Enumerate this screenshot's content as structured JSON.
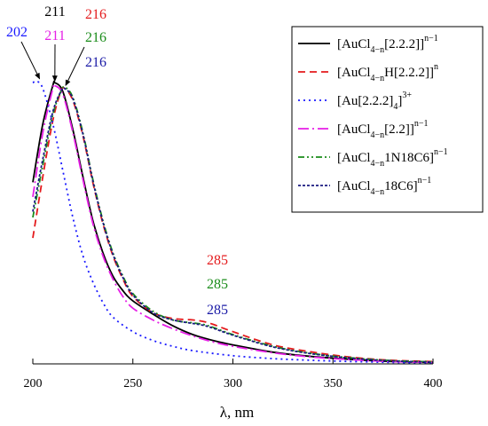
{
  "chart_data": {
    "type": "line",
    "title": "",
    "xlabel": "λ, nm",
    "ylabel": "",
    "xlim": [
      200,
      400
    ],
    "ylim": [
      0,
      1.0
    ],
    "xticks": [
      200,
      250,
      300,
      350,
      400
    ],
    "y_tick_labels": false,
    "grid": false,
    "legend_position": "top-right",
    "legend": [
      {
        "base": "[AuCl",
        "sub": "4−n",
        "after": "[2.2.2]]",
        "sup": "n−1"
      },
      {
        "base": "[AuCl",
        "sub": "4−n",
        "after": "H[2.2.2]]",
        "sup": "n"
      },
      {
        "base": "[Au[2.2.2]",
        "sub": "4",
        "after": "]",
        "sup": "3+"
      },
      {
        "base": "[AuCl",
        "sub": "4−n",
        "after": "[2.2]]",
        "sup": "n−1"
      },
      {
        "base": "[AuCl",
        "sub": "4−n",
        "after": "1N18C6]",
        "sup": "n−1"
      },
      {
        "base": "[AuCl",
        "sub": "4−n",
        "after": "18C6]",
        "sup": "n−1"
      }
    ],
    "series": [
      {
        "color": "#000000",
        "dash": "solid",
        "points": [
          [
            200,
            0.62
          ],
          [
            205,
            0.82
          ],
          [
            210,
            0.95
          ],
          [
            211,
            0.96
          ],
          [
            215,
            0.93
          ],
          [
            220,
            0.8
          ],
          [
            225,
            0.64
          ],
          [
            230,
            0.49
          ],
          [
            235,
            0.38
          ],
          [
            240,
            0.3
          ],
          [
            245,
            0.25
          ],
          [
            250,
            0.215
          ],
          [
            260,
            0.17
          ],
          [
            270,
            0.13
          ],
          [
            280,
            0.1
          ],
          [
            290,
            0.08
          ],
          [
            300,
            0.065
          ],
          [
            320,
            0.04
          ],
          [
            340,
            0.025
          ],
          [
            360,
            0.015
          ],
          [
            380,
            0.008
          ],
          [
            400,
            0.005
          ]
        ]
      },
      {
        "color": "#e41a1c",
        "dash": "8,5",
        "points": [
          [
            200,
            0.43
          ],
          [
            205,
            0.64
          ],
          [
            210,
            0.83
          ],
          [
            214,
            0.93
          ],
          [
            216,
            0.94
          ],
          [
            220,
            0.9
          ],
          [
            225,
            0.78
          ],
          [
            230,
            0.62
          ],
          [
            235,
            0.48
          ],
          [
            240,
            0.37
          ],
          [
            245,
            0.29
          ],
          [
            250,
            0.23
          ],
          [
            260,
            0.175
          ],
          [
            270,
            0.155
          ],
          [
            280,
            0.15
          ],
          [
            285,
            0.145
          ],
          [
            290,
            0.135
          ],
          [
            300,
            0.11
          ],
          [
            320,
            0.065
          ],
          [
            340,
            0.04
          ],
          [
            360,
            0.022
          ],
          [
            380,
            0.012
          ],
          [
            400,
            0.008
          ]
        ]
      },
      {
        "color": "#1a1aff",
        "dash": "2,4",
        "points": [
          [
            200,
            0.96
          ],
          [
            202,
            0.965
          ],
          [
            205,
            0.94
          ],
          [
            210,
            0.82
          ],
          [
            215,
            0.66
          ],
          [
            220,
            0.5
          ],
          [
            225,
            0.37
          ],
          [
            230,
            0.28
          ],
          [
            235,
            0.21
          ],
          [
            240,
            0.16
          ],
          [
            250,
            0.11
          ],
          [
            260,
            0.08
          ],
          [
            270,
            0.06
          ],
          [
            280,
            0.045
          ],
          [
            300,
            0.028
          ],
          [
            320,
            0.018
          ],
          [
            340,
            0.012
          ],
          [
            360,
            0.008
          ],
          [
            380,
            0.005
          ],
          [
            400,
            0.003
          ]
        ]
      },
      {
        "color": "#e61fe6",
        "dash": "12,4,2,4",
        "points": [
          [
            200,
            0.57
          ],
          [
            205,
            0.79
          ],
          [
            210,
            0.94
          ],
          [
            211,
            0.95
          ],
          [
            215,
            0.92
          ],
          [
            220,
            0.79
          ],
          [
            225,
            0.63
          ],
          [
            230,
            0.48
          ],
          [
            235,
            0.37
          ],
          [
            240,
            0.29
          ],
          [
            245,
            0.23
          ],
          [
            250,
            0.19
          ],
          [
            260,
            0.15
          ],
          [
            270,
            0.12
          ],
          [
            280,
            0.095
          ],
          [
            290,
            0.075
          ],
          [
            300,
            0.06
          ],
          [
            320,
            0.038
          ],
          [
            340,
            0.023
          ],
          [
            360,
            0.014
          ],
          [
            380,
            0.008
          ],
          [
            400,
            0.005
          ]
        ]
      },
      {
        "color": "#1a8c1a",
        "dash": "7,3,2,3,2,3",
        "points": [
          [
            200,
            0.5
          ],
          [
            205,
            0.68
          ],
          [
            210,
            0.85
          ],
          [
            214,
            0.93
          ],
          [
            216,
            0.945
          ],
          [
            220,
            0.91
          ],
          [
            225,
            0.79
          ],
          [
            230,
            0.63
          ],
          [
            235,
            0.49
          ],
          [
            240,
            0.38
          ],
          [
            245,
            0.3
          ],
          [
            250,
            0.24
          ],
          [
            260,
            0.18
          ],
          [
            270,
            0.15
          ],
          [
            280,
            0.14
          ],
          [
            285,
            0.135
          ],
          [
            290,
            0.125
          ],
          [
            300,
            0.1
          ],
          [
            320,
            0.06
          ],
          [
            340,
            0.035
          ],
          [
            360,
            0.02
          ],
          [
            380,
            0.011
          ],
          [
            400,
            0.007
          ]
        ]
      },
      {
        "color": "#1a1a80",
        "dash": "3,2",
        "points": [
          [
            200,
            0.52
          ],
          [
            205,
            0.7
          ],
          [
            210,
            0.86
          ],
          [
            214,
            0.93
          ],
          [
            216,
            0.94
          ],
          [
            220,
            0.905
          ],
          [
            225,
            0.785
          ],
          [
            230,
            0.625
          ],
          [
            235,
            0.485
          ],
          [
            240,
            0.375
          ],
          [
            245,
            0.295
          ],
          [
            250,
            0.235
          ],
          [
            260,
            0.175
          ],
          [
            270,
            0.15
          ],
          [
            280,
            0.138
          ],
          [
            285,
            0.132
          ],
          [
            290,
            0.122
          ],
          [
            300,
            0.098
          ],
          [
            320,
            0.058
          ],
          [
            340,
            0.034
          ],
          [
            360,
            0.019
          ],
          [
            380,
            0.01
          ],
          [
            400,
            0.006
          ]
        ]
      }
    ],
    "annotations": [
      {
        "text": "211",
        "color": "#000000"
      },
      {
        "text": "216",
        "color": "#e41a1c"
      },
      {
        "text": "202",
        "color": "#1a1aff"
      },
      {
        "text": "211",
        "color": "#e61fe6"
      },
      {
        "text": "216",
        "color": "#1a8c1a"
      },
      {
        "text": "216",
        "color": "#1a1aa6"
      },
      {
        "text": "285",
        "color": "#e41a1c"
      },
      {
        "text": "285",
        "color": "#1a8c1a"
      },
      {
        "text": "285",
        "color": "#1a1aa6"
      }
    ]
  }
}
